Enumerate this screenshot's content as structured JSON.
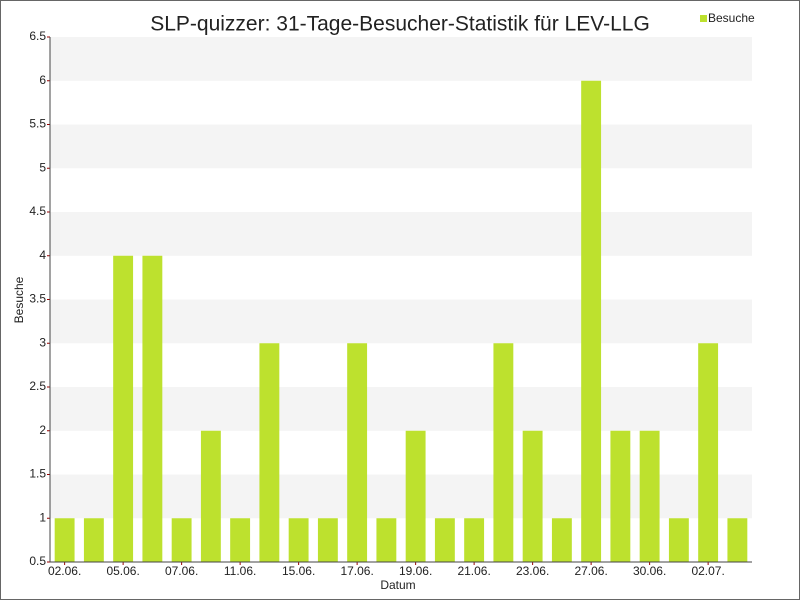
{
  "chart_data": {
    "type": "bar",
    "title": "SLP-quizzer: 31-Tage-Besucher-Statistik für LEV-LLG",
    "x_label": "Datum",
    "y_label": "Besuche",
    "categories": [
      "02.06.",
      null,
      "05.06.",
      null,
      "07.06.",
      null,
      "11.06.",
      null,
      "15.06.",
      null,
      "17.06.",
      null,
      "19.06.",
      null,
      "21.06.",
      null,
      "23.06.",
      null,
      "27.06.",
      null,
      "30.06.",
      null,
      "02.07.",
      null
    ],
    "series": [
      {
        "name": "Besuche",
        "color": "#bde12e",
        "values": [
          1,
          1,
          4,
          4,
          1,
          2,
          1,
          3,
          1,
          1,
          3,
          1,
          2,
          1,
          1,
          3,
          2,
          1,
          6,
          2,
          2,
          1,
          3,
          1
        ]
      }
    ],
    "ylim": [
      0.5,
      6.5
    ],
    "yticks": [
      0.5,
      1,
      1.5,
      2,
      2.5,
      3,
      3.5,
      4,
      4.5,
      5,
      5.5,
      6,
      6.5
    ],
    "grid": true,
    "legend": "top-right"
  }
}
